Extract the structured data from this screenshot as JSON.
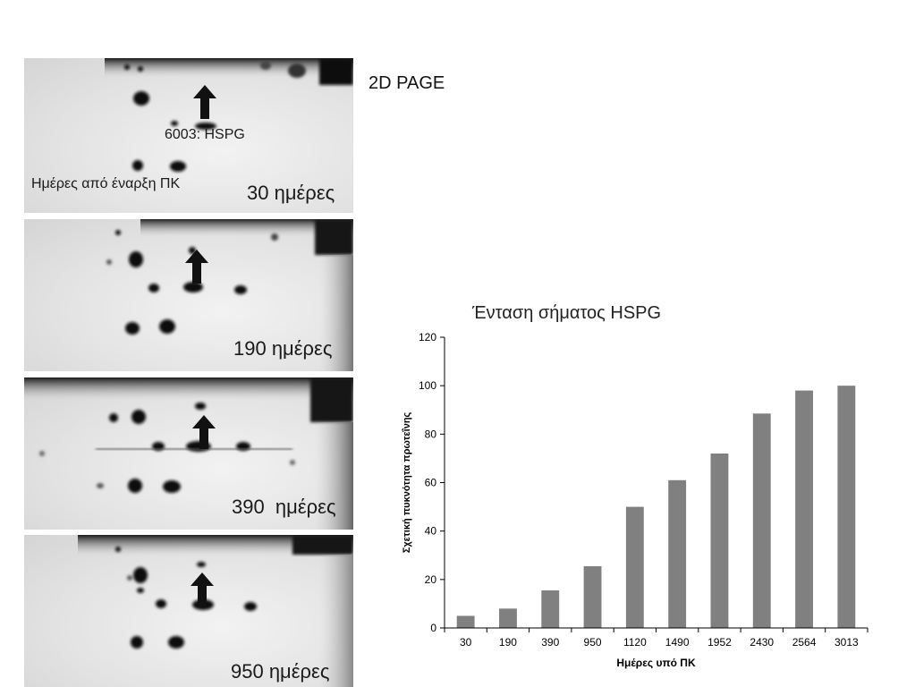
{
  "header": {
    "title": "2D PAGE"
  },
  "gels": [
    {
      "days_label": "30 ημέρες",
      "annotation_protein": "6003: HSPG",
      "annotation_axis": "Ημέρες από έναρξη ΠΚ"
    },
    {
      "days_label": "190 ημέρες"
    },
    {
      "days_label": "390  ημέρες"
    },
    {
      "days_label": "950 ημέρες"
    }
  ],
  "colors": {
    "bar": "#808080",
    "axis": "#000000",
    "gel_spot": "#111111",
    "gel_bg": "#e4e4e4"
  },
  "icons": {
    "gel_marker": "arrow-up-icon"
  },
  "chart_data": {
    "type": "bar",
    "title": "Ένταση σήματος HSPG",
    "xlabel": "Ημέρες υπό ΠΚ",
    "ylabel": "Σχετική πυκνότητα πρωτεΐνης",
    "categories": [
      "30",
      "190",
      "390",
      "950",
      "1120",
      "1490",
      "1952",
      "2430",
      "2564",
      "3013"
    ],
    "values": [
      5,
      8,
      15.5,
      25.5,
      50,
      61,
      72,
      88.5,
      98,
      100
    ],
    "ylim": [
      0,
      120
    ],
    "yticks": [
      0,
      20,
      40,
      60,
      80,
      100,
      120
    ],
    "grid": false,
    "legend": "none"
  }
}
